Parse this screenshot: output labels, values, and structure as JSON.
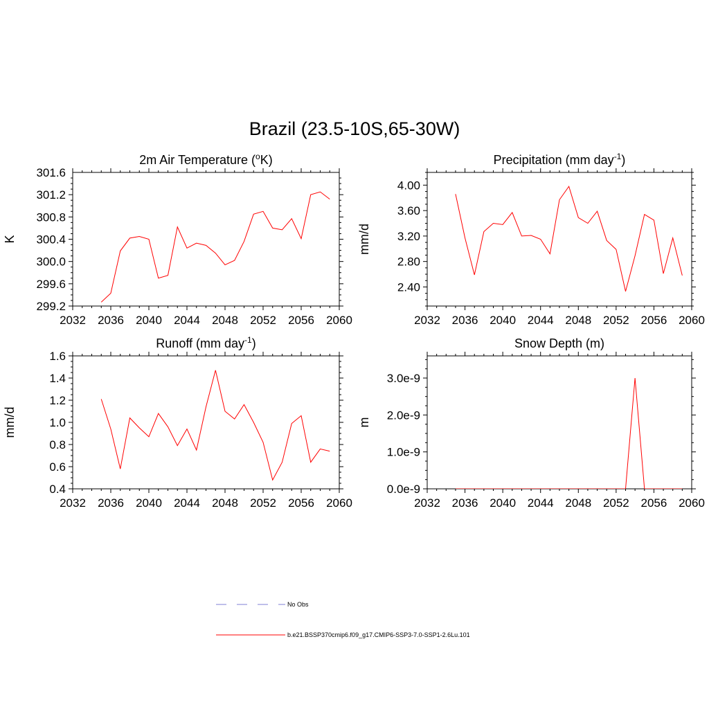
{
  "title": "Brazil (23.5-10S,65-30W)",
  "legend": {
    "obs_label": "No Obs",
    "obs_color": "#9999dd",
    "model_label": "b.e21.BSSP370cmip6.f09_g17.CMIP6-SSP3-7.0-SSP1-2.6Lu.101",
    "model_color": "#ff0000"
  },
  "chart_data": [
    {
      "type": "line",
      "title": "2m Air Temperature (°K)",
      "title_text": "2m Air Temperature (",
      "title_sup": "o",
      "title_text2": "K)",
      "xlabel": "",
      "ylabel": "K",
      "xlim": [
        2032,
        2060
      ],
      "ylim": [
        299.2,
        301.6
      ],
      "x_ticks": [
        "2032",
        "2036",
        "2040",
        "2044",
        "2048",
        "2052",
        "2056",
        "2060"
      ],
      "y_ticks": [
        "299.2",
        "299.6",
        "300.0",
        "300.4",
        "300.8",
        "301.2",
        "301.6"
      ],
      "series": [
        {
          "color": "#ff0000",
          "x": [
            2035,
            2036,
            2037,
            2038,
            2039,
            2040,
            2041,
            2042,
            2043,
            2044,
            2045,
            2046,
            2047,
            2048,
            2049,
            2050,
            2051,
            2052,
            2053,
            2054,
            2055,
            2056,
            2057,
            2058,
            2059
          ],
          "y": [
            299.27,
            299.43,
            300.19,
            300.42,
            300.45,
            300.4,
            299.7,
            299.75,
            300.62,
            300.24,
            300.33,
            300.29,
            300.15,
            299.94,
            300.02,
            300.36,
            300.85,
            300.9,
            300.6,
            300.57,
            300.77,
            300.41,
            301.2,
            301.25,
            301.12
          ]
        }
      ]
    },
    {
      "type": "line",
      "title": "Precipitation (mm day-1)",
      "title_text": "Precipitation (mm day",
      "title_sup": "-1",
      "title_text2": ")",
      "xlabel": "",
      "ylabel": "mm/d",
      "xlim": [
        2032,
        2060
      ],
      "ylim": [
        2.1,
        4.2
      ],
      "x_ticks": [
        "2032",
        "2036",
        "2040",
        "2044",
        "2048",
        "2052",
        "2056",
        "2060"
      ],
      "y_ticks": [
        "2.40",
        "2.80",
        "3.20",
        "3.60",
        "4.00"
      ],
      "series": [
        {
          "color": "#ff0000",
          "x": [
            2035,
            2036,
            2037,
            2038,
            2039,
            2040,
            2041,
            2042,
            2043,
            2044,
            2045,
            2046,
            2047,
            2048,
            2049,
            2050,
            2051,
            2052,
            2053,
            2054,
            2055,
            2056,
            2057,
            2058,
            2059
          ],
          "y": [
            3.86,
            3.17,
            2.59,
            3.27,
            3.4,
            3.38,
            3.57,
            3.2,
            3.21,
            3.15,
            2.92,
            3.77,
            3.98,
            3.49,
            3.4,
            3.59,
            3.13,
            2.99,
            2.33,
            2.89,
            3.54,
            3.45,
            2.61,
            3.17,
            2.58
          ]
        }
      ]
    },
    {
      "type": "line",
      "title": "Runoff (mm day-1)",
      "title_text": "Runoff (mm day",
      "title_sup": "-1",
      "title_text2": ")",
      "xlabel": "",
      "ylabel": "mm/d",
      "xlim": [
        2032,
        2060
      ],
      "ylim": [
        0.4,
        1.6
      ],
      "x_ticks": [
        "2032",
        "2036",
        "2040",
        "2044",
        "2048",
        "2052",
        "2056",
        "2060"
      ],
      "y_ticks": [
        "0.4",
        "0.6",
        "0.8",
        "1.0",
        "1.2",
        "1.4",
        "1.6"
      ],
      "series": [
        {
          "color": "#ff0000",
          "x": [
            2035,
            2036,
            2037,
            2038,
            2039,
            2040,
            2041,
            2042,
            2043,
            2044,
            2045,
            2046,
            2047,
            2048,
            2049,
            2050,
            2051,
            2052,
            2053,
            2054,
            2055,
            2056,
            2057,
            2058,
            2059
          ],
          "y": [
            1.21,
            0.94,
            0.58,
            1.04,
            0.95,
            0.87,
            1.08,
            0.96,
            0.79,
            0.94,
            0.75,
            1.14,
            1.47,
            1.1,
            1.03,
            1.16,
            1.0,
            0.82,
            0.48,
            0.64,
            0.99,
            1.06,
            0.64,
            0.76,
            0.74
          ]
        }
      ]
    },
    {
      "type": "line",
      "title": "Snow Depth (m)",
      "title_text": "Snow Depth (m)",
      "title_sup": "",
      "title_text2": "",
      "xlabel": "",
      "ylabel": "m",
      "xlim": [
        2032,
        2060
      ],
      "ylim": [
        0,
        3.6e-09
      ],
      "x_ticks": [
        "2032",
        "2036",
        "2040",
        "2044",
        "2048",
        "2052",
        "2056",
        "2060"
      ],
      "y_ticks": [
        "0.0e-9",
        "1.0e-9",
        "2.0e-9",
        "3.0e-9"
      ],
      "series": [
        {
          "color": "#ff0000",
          "x": [
            2035,
            2036,
            2037,
            2038,
            2039,
            2040,
            2041,
            2042,
            2043,
            2044,
            2045,
            2046,
            2047,
            2048,
            2049,
            2050,
            2051,
            2052,
            2053,
            2054,
            2055,
            2056,
            2057,
            2058,
            2059
          ],
          "y": [
            0,
            0,
            0,
            0,
            0,
            0,
            0,
            0,
            0,
            0,
            0,
            0,
            0,
            0,
            0,
            0,
            0,
            0,
            0,
            3e-09,
            0,
            0,
            0,
            0,
            0
          ]
        }
      ]
    }
  ]
}
